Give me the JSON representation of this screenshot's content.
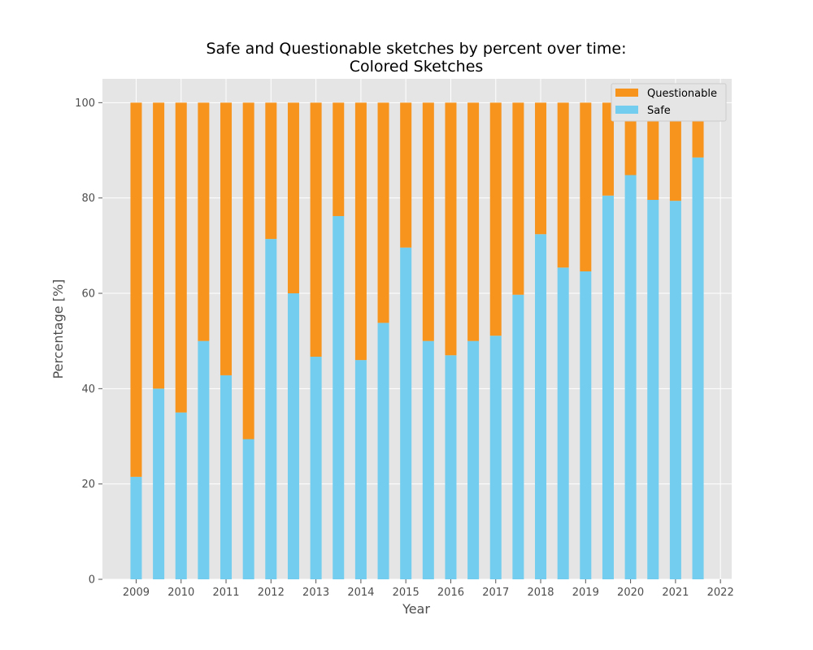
{
  "chart_data": {
    "type": "bar",
    "stacked": true,
    "title": [
      "Safe and Questionable sketches by percent over time:",
      "Colored Sketches"
    ],
    "xlabel": "Year",
    "ylabel": "Percentage [%]",
    "xlim": [
      2008.25,
      2022.25
    ],
    "ylim": [
      0,
      105
    ],
    "x_ticks": [
      2009,
      2010,
      2011,
      2012,
      2013,
      2014,
      2015,
      2016,
      2017,
      2018,
      2019,
      2020,
      2021,
      2022
    ],
    "y_ticks": [
      0,
      20,
      40,
      60,
      80,
      100
    ],
    "grid": true,
    "legend_position": "top-right",
    "bar_positions": [
      2009,
      2009.5,
      2010,
      2010.5,
      2011,
      2011.5,
      2012,
      2012.5,
      2013,
      2013.5,
      2014,
      2014.5,
      2015,
      2015.5,
      2016,
      2016.5,
      2017,
      2017.5,
      2018,
      2018.5,
      2019,
      2019.5,
      2020,
      2020.5,
      2021,
      2021.5
    ],
    "series": [
      {
        "name": "Safe",
        "color": "#72cdee",
        "values": [
          21.5,
          40,
          35,
          50,
          42.8,
          29.4,
          71.4,
          60,
          46.7,
          76.2,
          46,
          53.8,
          69.6,
          50,
          47,
          50,
          51.1,
          59.7,
          72.4,
          65.4,
          64.6,
          80.5,
          84.8,
          79.6,
          79.4,
          88.5
        ]
      },
      {
        "name": "Questionable",
        "color": "#f7941e",
        "values": [
          78.5,
          60,
          65,
          50,
          57.2,
          70.6,
          28.6,
          40,
          53.3,
          23.8,
          54,
          46.2,
          30.4,
          50,
          53,
          50,
          48.9,
          40.3,
          27.6,
          34.6,
          35.4,
          19.5,
          15.2,
          20.4,
          20.6,
          11.5
        ]
      }
    ]
  }
}
